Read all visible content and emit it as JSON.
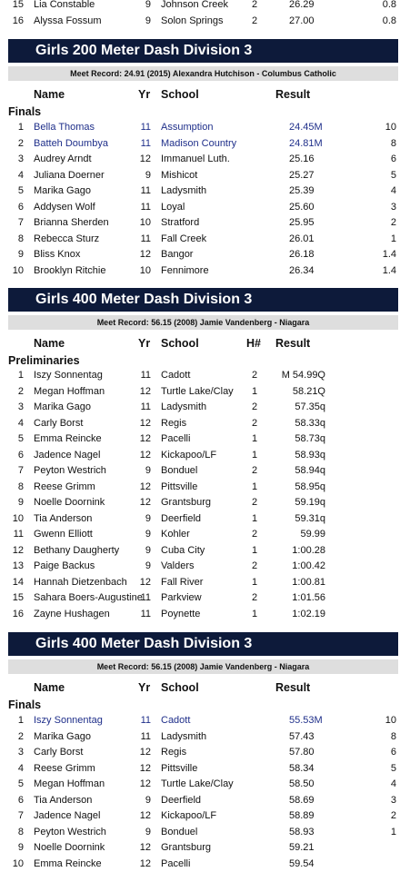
{
  "top_rows": [
    {
      "place": "15",
      "name": "Lia Constable",
      "yr": "9",
      "school": "Johnson Creek",
      "heat": "2",
      "result": "26.29",
      "points": "0.8"
    },
    {
      "place": "16",
      "name": "Alyssa Fossum",
      "yr": "9",
      "school": "Solon Springs",
      "heat": "2",
      "result": "27.00",
      "points": "0.8"
    }
  ],
  "section1": {
    "title": "Girls 200 Meter Dash Division 3",
    "record": "Meet Record: 24.91 (2015) Alexandra Hutchison - Columbus Catholic",
    "headers": {
      "name": "Name",
      "yr": "Yr",
      "school": "School",
      "result": "Result"
    },
    "round": "Finals",
    "rows": [
      {
        "place": "1",
        "name": "Bella Thomas",
        "yr": "11",
        "school": "Assumption",
        "result": "24.45M",
        "points": "10"
      },
      {
        "place": "2",
        "name": "Batteh Doumbya",
        "yr": "11",
        "school": "Madison Country",
        "result": "24.81M",
        "points": "8"
      },
      {
        "place": "3",
        "name": "Audrey Arndt",
        "yr": "12",
        "school": "Immanuel Luth.",
        "result": "25.16",
        "points": "6"
      },
      {
        "place": "4",
        "name": "Juliana Doerner",
        "yr": "9",
        "school": "Mishicot",
        "result": "25.27",
        "points": "5"
      },
      {
        "place": "5",
        "name": "Marika Gago",
        "yr": "11",
        "school": "Ladysmith",
        "result": "25.39",
        "points": "4"
      },
      {
        "place": "6",
        "name": "Addysen Wolf",
        "yr": "11",
        "school": "Loyal",
        "result": "25.60",
        "points": "3"
      },
      {
        "place": "7",
        "name": "Brianna Sherden",
        "yr": "10",
        "school": "Stratford",
        "result": "25.95",
        "points": "2"
      },
      {
        "place": "8",
        "name": "Rebecca Sturz",
        "yr": "11",
        "school": "Fall Creek",
        "result": "26.01",
        "points": "1"
      },
      {
        "place": "9",
        "name": "Bliss Knox",
        "yr": "12",
        "school": "Bangor",
        "result": "26.18",
        "points": "1.4"
      },
      {
        "place": "10",
        "name": "Brooklyn Ritchie",
        "yr": "10",
        "school": "Fennimore",
        "result": "26.34",
        "points": "1.4"
      }
    ]
  },
  "section2": {
    "title": "Girls 400 Meter Dash Division 3",
    "record": "Meet Record: 56.15 (2008) Jamie Vandenberg - Niagara",
    "headers": {
      "name": "Name",
      "yr": "Yr",
      "school": "School",
      "heat": "H#",
      "result": "Result"
    },
    "round": "Preliminaries",
    "rows": [
      {
        "place": "1",
        "name": "Iszy Sonnentag",
        "yr": "11",
        "school": "Cadott",
        "heat": "2",
        "result": "M 54.99Q"
      },
      {
        "place": "2",
        "name": "Megan Hoffman",
        "yr": "12",
        "school": "Turtle Lake/Clay",
        "heat": "1",
        "result": "58.21Q"
      },
      {
        "place": "3",
        "name": "Marika Gago",
        "yr": "11",
        "school": "Ladysmith",
        "heat": "2",
        "result": "57.35q"
      },
      {
        "place": "4",
        "name": "Carly Borst",
        "yr": "12",
        "school": "Regis",
        "heat": "2",
        "result": "58.33q"
      },
      {
        "place": "5",
        "name": "Emma Reincke",
        "yr": "12",
        "school": "Pacelli",
        "heat": "1",
        "result": "58.73q"
      },
      {
        "place": "6",
        "name": "Jadence Nagel",
        "yr": "12",
        "school": "Kickapoo/LF",
        "heat": "1",
        "result": "58.93q"
      },
      {
        "place": "7",
        "name": "Peyton Westrich",
        "yr": "9",
        "school": "Bonduel",
        "heat": "2",
        "result": "58.94q"
      },
      {
        "place": "8",
        "name": "Reese Grimm",
        "yr": "12",
        "school": "Pittsville",
        "heat": "1",
        "result": "58.95q"
      },
      {
        "place": "9",
        "name": "Noelle Doornink",
        "yr": "12",
        "school": "Grantsburg",
        "heat": "2",
        "result": "59.19q"
      },
      {
        "place": "10",
        "name": "Tia Anderson",
        "yr": "9",
        "school": "Deerfield",
        "heat": "1",
        "result": "59.31q"
      },
      {
        "place": "11",
        "name": "Gwenn Elliott",
        "yr": "9",
        "school": "Kohler",
        "heat": "2",
        "result": "59.99"
      },
      {
        "place": "12",
        "name": "Bethany Daugherty",
        "yr": "9",
        "school": "Cuba City",
        "heat": "1",
        "result": "1:00.28"
      },
      {
        "place": "13",
        "name": "Paige Backus",
        "yr": "9",
        "school": "Valders",
        "heat": "2",
        "result": "1:00.42"
      },
      {
        "place": "14",
        "name": "Hannah Dietzenbach",
        "yr": "12",
        "school": "Fall River",
        "heat": "1",
        "result": "1:00.81"
      },
      {
        "place": "15",
        "name": "Sahara Boers-Augustine",
        "yr": "11",
        "school": "Parkview",
        "heat": "2",
        "result": "1:01.56"
      },
      {
        "place": "16",
        "name": "Zayne Hushagen",
        "yr": "11",
        "school": "Poynette",
        "heat": "1",
        "result": "1:02.19"
      }
    ]
  },
  "section3": {
    "title": "Girls 400 Meter Dash Division 3",
    "record": "Meet Record: 56.15 (2008) Jamie Vandenberg - Niagara",
    "headers": {
      "name": "Name",
      "yr": "Yr",
      "school": "School",
      "result": "Result"
    },
    "round": "Finals",
    "rows": [
      {
        "place": "1",
        "name": "Iszy Sonnentag",
        "yr": "11",
        "school": "Cadott",
        "result": "55.53M",
        "points": "10"
      },
      {
        "place": "2",
        "name": "Marika Gago",
        "yr": "11",
        "school": "Ladysmith",
        "result": "57.43",
        "points": "8"
      },
      {
        "place": "3",
        "name": "Carly Borst",
        "yr": "12",
        "school": "Regis",
        "result": "57.80",
        "points": "6"
      },
      {
        "place": "4",
        "name": "Reese Grimm",
        "yr": "12",
        "school": "Pittsville",
        "result": "58.34",
        "points": "5"
      },
      {
        "place": "5",
        "name": "Megan Hoffman",
        "yr": "12",
        "school": "Turtle Lake/Clay",
        "result": "58.50",
        "points": "4"
      },
      {
        "place": "6",
        "name": "Tia Anderson",
        "yr": "9",
        "school": "Deerfield",
        "result": "58.69",
        "points": "3"
      },
      {
        "place": "7",
        "name": "Jadence Nagel",
        "yr": "12",
        "school": "Kickapoo/LF",
        "result": "58.89",
        "points": "2"
      },
      {
        "place": "8",
        "name": "Peyton Westrich",
        "yr": "9",
        "school": "Bonduel",
        "result": "58.93",
        "points": "1"
      },
      {
        "place": "9",
        "name": "Noelle Doornink",
        "yr": "12",
        "school": "Grantsburg",
        "result": "59.21",
        "points": ""
      },
      {
        "place": "10",
        "name": "Emma Reincke",
        "yr": "12",
        "school": "Pacelli",
        "result": "59.54",
        "points": ""
      }
    ]
  },
  "colors": {
    "banner": "#0d1a3a",
    "record_bg": "#dedede",
    "highlight_text": "#1f2f8a"
  }
}
